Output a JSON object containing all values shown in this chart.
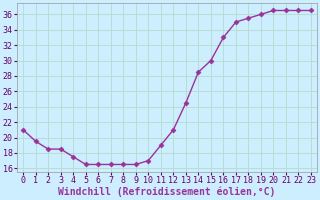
{
  "x": [
    0,
    1,
    2,
    3,
    4,
    5,
    6,
    7,
    8,
    9,
    10,
    11,
    12,
    13,
    14,
    15,
    16,
    17,
    18,
    19,
    20,
    21,
    22,
    23
  ],
  "y": [
    21,
    19.5,
    18.5,
    18.5,
    17.5,
    16.5,
    16.5,
    16.5,
    16.5,
    16.5,
    17,
    19,
    21,
    24.5,
    28.5,
    30,
    33,
    35,
    35.5,
    36,
    36.5,
    36.5,
    36.5,
    36.5
  ],
  "line_color": "#993399",
  "marker": "D",
  "marker_size": 2.5,
  "bg_color": "#cceeff",
  "grid_color": "#aaddcc",
  "xlabel": "Windchill (Refroidissement éolien,°C)",
  "xlim": [
    -0.5,
    23.5
  ],
  "ylim": [
    15.5,
    37.5
  ],
  "yticks": [
    16,
    18,
    20,
    22,
    24,
    26,
    28,
    30,
    32,
    34,
    36
  ],
  "xticks": [
    0,
    1,
    2,
    3,
    4,
    5,
    6,
    7,
    8,
    9,
    10,
    11,
    12,
    13,
    14,
    15,
    16,
    17,
    18,
    19,
    20,
    21,
    22,
    23
  ],
  "tick_label_fontsize": 6,
  "xlabel_fontsize": 7,
  "line_width": 1.0
}
